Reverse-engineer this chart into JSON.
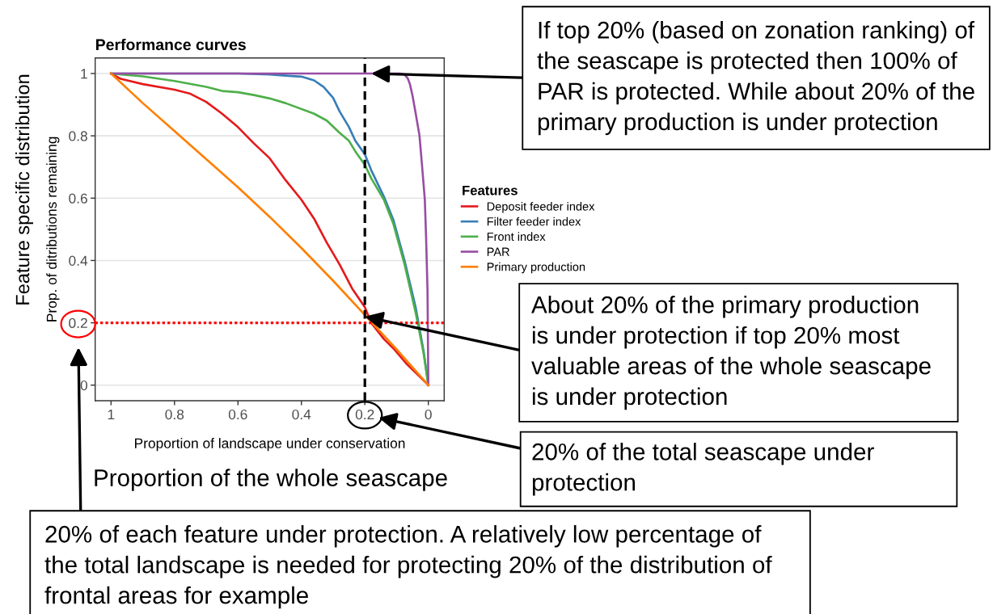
{
  "chart_data": {
    "type": "line",
    "title": "Performance curves",
    "xlabel": "Proportion of landscape under conservation",
    "ylabel": "Prop. of ditributions remaining",
    "legend_title": "Features",
    "series": [
      {
        "name": "Deposit feeder index",
        "color": "#e41a1c",
        "x": [
          1,
          0.97,
          0.9,
          0.8,
          0.75,
          0.7,
          0.65,
          0.6,
          0.55,
          0.5,
          0.45,
          0.4,
          0.36,
          0.32,
          0.28,
          0.24,
          0.2,
          0.18,
          0.14,
          0.11,
          0.07,
          0.03,
          0
        ],
        "values": [
          1,
          0.983,
          0.966,
          0.948,
          0.935,
          0.909,
          0.871,
          0.828,
          0.776,
          0.728,
          0.658,
          0.595,
          0.534,
          0.457,
          0.388,
          0.31,
          0.25,
          0.2,
          0.148,
          0.118,
          0.07,
          0.03,
          0
        ]
      },
      {
        "name": "Filter feeder index",
        "color": "#377eb8",
        "x": [
          1,
          0.6,
          0.5,
          0.45,
          0.4,
          0.36,
          0.33,
          0.3,
          0.28,
          0.25,
          0.23,
          0.2,
          0.18,
          0.14,
          0.11,
          0.075,
          0.04,
          0.015,
          0
        ],
        "values": [
          1,
          1,
          0.997,
          0.993,
          0.99,
          0.978,
          0.957,
          0.922,
          0.879,
          0.828,
          0.784,
          0.741,
          0.69,
          0.605,
          0.53,
          0.4,
          0.25,
          0.11,
          0
        ]
      },
      {
        "name": "Front index",
        "color": "#4daf4a",
        "x": [
          1,
          0.9,
          0.8,
          0.7,
          0.65,
          0.6,
          0.55,
          0.5,
          0.45,
          0.36,
          0.32,
          0.28,
          0.25,
          0.23,
          0.2,
          0.18,
          0.14,
          0.11,
          0.075,
          0.04,
          0.015,
          0
        ],
        "values": [
          1,
          0.991,
          0.976,
          0.957,
          0.944,
          0.94,
          0.931,
          0.92,
          0.905,
          0.871,
          0.849,
          0.81,
          0.784,
          0.75,
          0.707,
          0.664,
          0.595,
          0.517,
          0.388,
          0.233,
          0.103,
          0
        ]
      },
      {
        "name": "PAR",
        "color": "#984ea3",
        "x": [
          1,
          0.09,
          0.075,
          0.065,
          0.058,
          0.05,
          0.041,
          0.028,
          0.02,
          0.011,
          0.007,
          0.0025,
          0
        ],
        "values": [
          1,
          1,
          0.997,
          0.985,
          0.966,
          0.93,
          0.879,
          0.802,
          0.707,
          0.595,
          0.474,
          0.302,
          0
        ]
      },
      {
        "name": "Primary production",
        "color": "#ff7f00",
        "x": [
          1,
          0.9,
          0.8,
          0.7,
          0.6,
          0.5,
          0.4,
          0.3,
          0.2,
          0.1,
          0
        ],
        "values": [
          1,
          0.905,
          0.815,
          0.725,
          0.635,
          0.54,
          0.44,
          0.335,
          0.225,
          0.115,
          0
        ]
      }
    ],
    "xlim": [
      1.05,
      -0.05
    ],
    "ylim": [
      -0.05,
      1.05
    ],
    "xticks": [
      1,
      0.8,
      0.6,
      0.4,
      0.2,
      0
    ],
    "yticks": [
      0,
      0.2,
      0.4,
      0.6,
      0.8,
      1
    ],
    "grid": "y",
    "legend": "right",
    "ref_lines": [
      {
        "axis": "x",
        "value": 0.2,
        "color": "#000000",
        "line_style": "dashed"
      },
      {
        "axis": "y",
        "value": 0.2,
        "color": "#ff0000",
        "line_style": "dotted"
      }
    ],
    "annotations": [
      {
        "text": "If top 20% (based on zonation ranking) of\nthe seascape is protected then 100% of\nPAR is protected. While about 20% of the\nprimary production is under protection",
        "x": 0.18,
        "y": 1
      },
      {
        "text": "About 20% of the primary production\nis under protection if top 20% most\nvaluable areas of the whole seascape\nis under protection",
        "x": 0.2,
        "y": 0.22
      },
      "20% of the total seascape under\nprotection",
      "Proportion of the whole seascape",
      "20% of each feature under protection. A relatively low percentage of\nthe total landscape is needed for protecting 20% of the distribution of\nfrontal areas for example",
      "Feature specific distribution"
    ]
  }
}
